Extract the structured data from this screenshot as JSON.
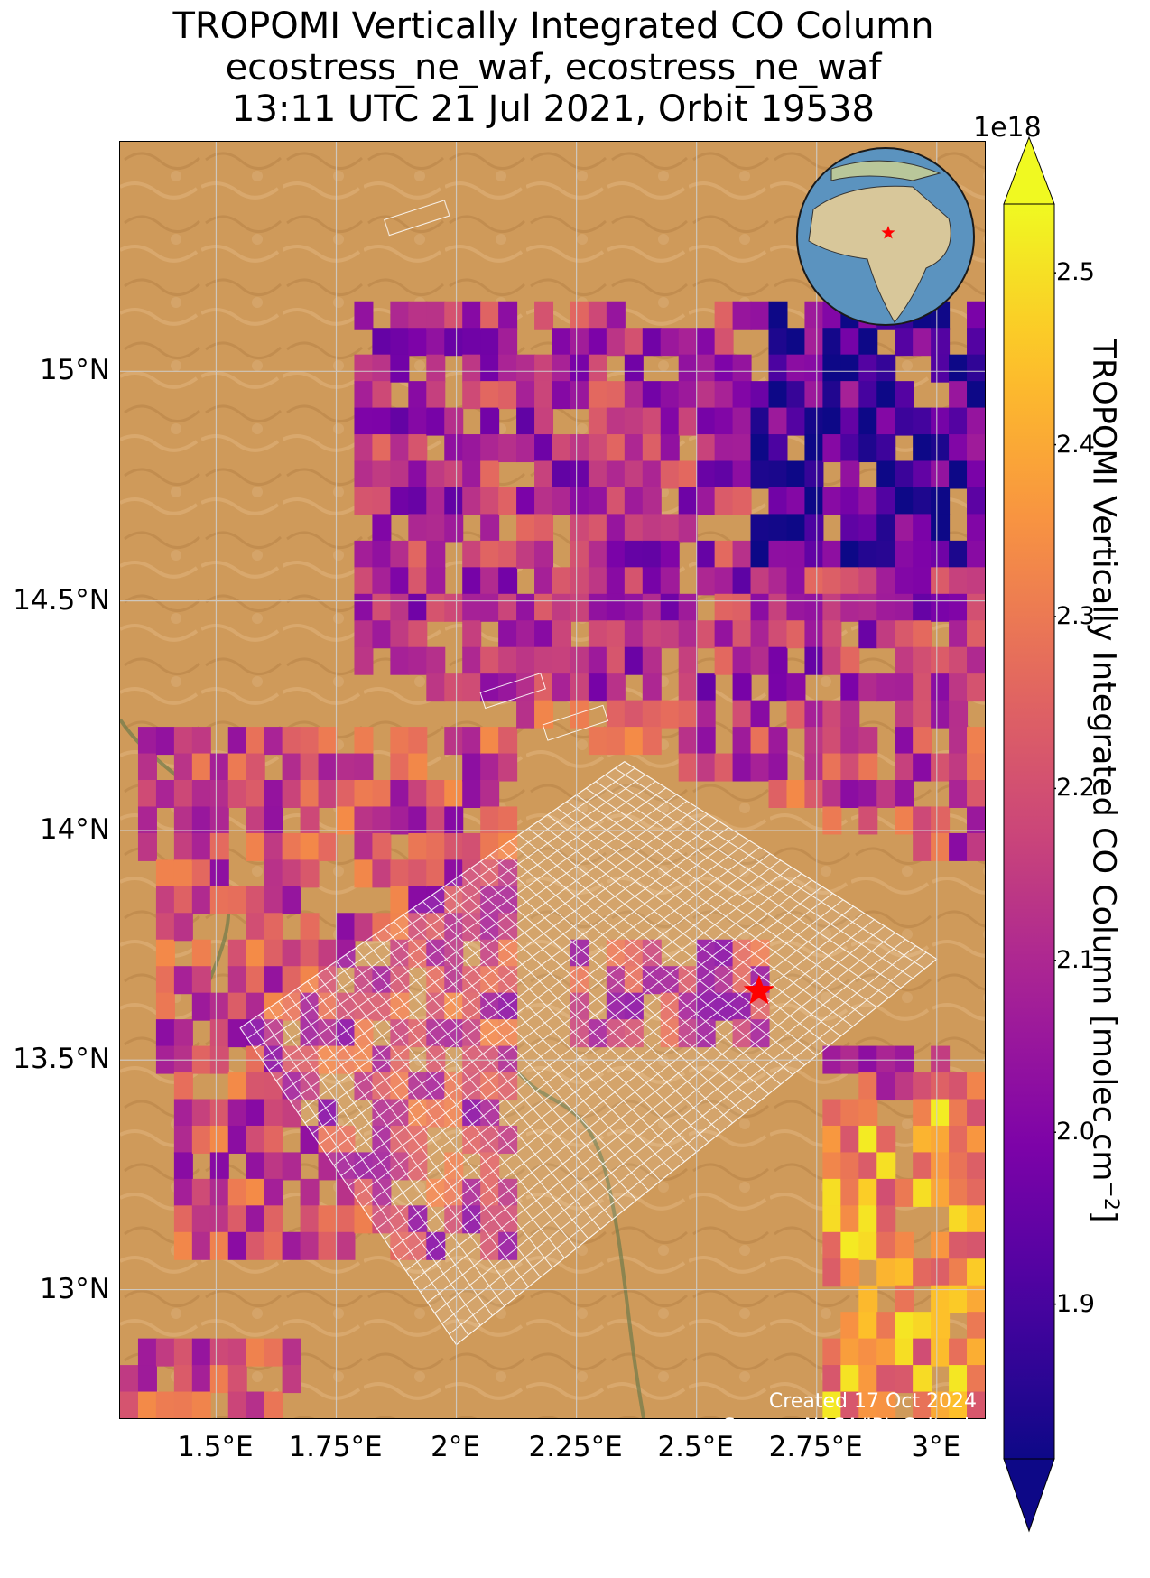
{
  "title": {
    "line1": "TROPOMI Vertically Integrated CO Column",
    "line2": "ecostress_ne_waf, ecostress_ne_waf",
    "line3": "13:11 UTC 21 Jul 2021, Orbit 19538"
  },
  "map": {
    "extent": {
      "lon": [
        1.3,
        3.1
      ],
      "lat": [
        12.72,
        15.5
      ]
    },
    "lat_ticks": [
      {
        "value": 15.0,
        "label": "15°N"
      },
      {
        "value": 14.5,
        "label": "14.5°N"
      },
      {
        "value": 14.0,
        "label": "14°N"
      },
      {
        "value": 13.5,
        "label": "13.5°N"
      },
      {
        "value": 13.0,
        "label": "13°N"
      }
    ],
    "lon_ticks": [
      {
        "value": 1.5,
        "label": "1.5°E"
      },
      {
        "value": 1.75,
        "label": "1.75°E"
      },
      {
        "value": 2.0,
        "label": "2°E"
      },
      {
        "value": 2.25,
        "label": "2.25°E"
      },
      {
        "value": 2.5,
        "label": "2.5°E"
      },
      {
        "value": 2.75,
        "label": "2.75°E"
      },
      {
        "value": 3.0,
        "label": "3°E"
      }
    ],
    "gridlines": true,
    "basemap": "satellite imagery (Sahel desert)",
    "target_marker": {
      "lon": 2.63,
      "lat": 13.65,
      "color": "#ff0000",
      "symbol": "star"
    },
    "inset_globe": {
      "placement": "top-right",
      "marker_color": "#ff0000",
      "region": "Africa"
    }
  },
  "colorbar": {
    "colormap": "plasma",
    "range": [
      1.81,
      2.54
    ],
    "exponent_label": "1e18",
    "ticks": [
      "1.9",
      "2.0",
      "2.1",
      "2.2",
      "2.3",
      "2.4",
      "2.5"
    ],
    "tick_values": [
      1.9,
      2.0,
      2.1,
      2.2,
      2.3,
      2.4,
      2.5
    ],
    "label": "TROPOMI Vertically Integrated CO Column [molec cm",
    "label_sup": "−2",
    "label_end": "]",
    "extend": "both"
  },
  "credits": {
    "created": "Created 17 Oct 2024",
    "source": "Source: NASA/JPL-Caltech"
  }
}
